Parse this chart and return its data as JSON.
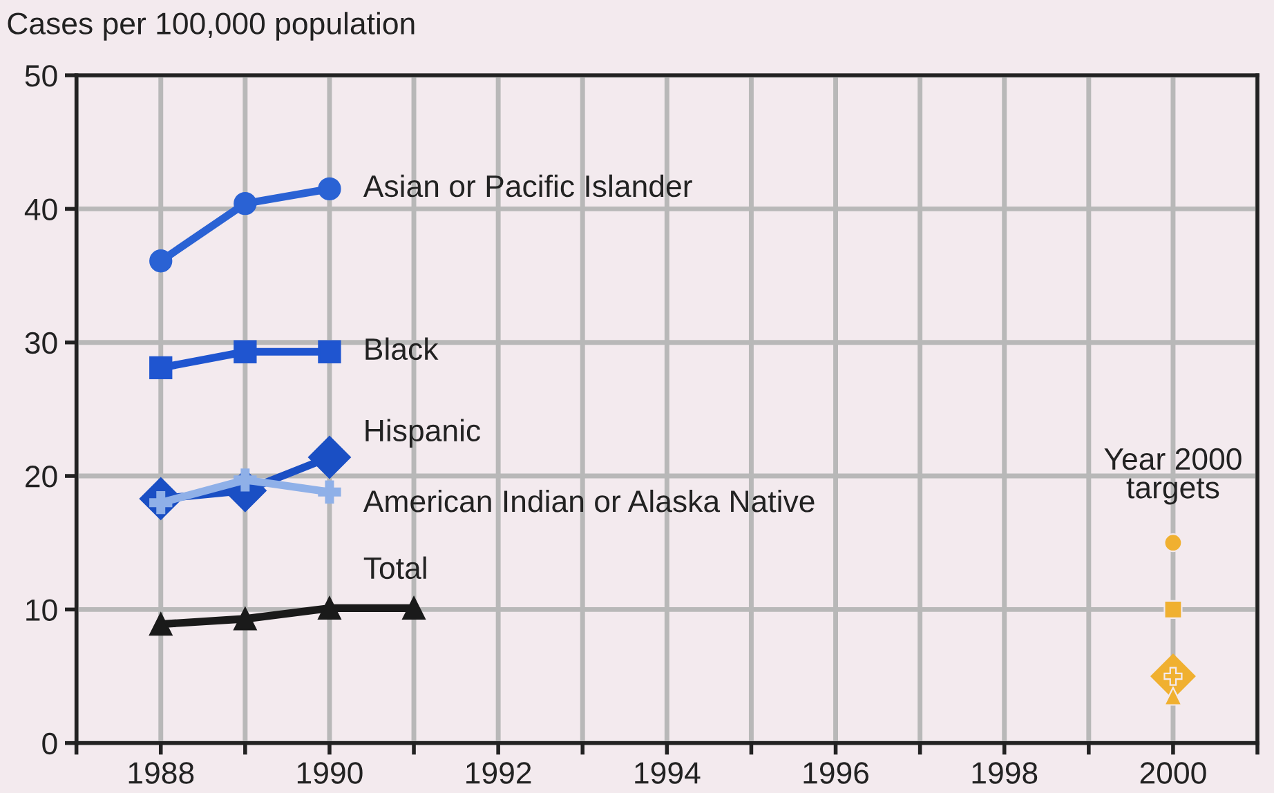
{
  "chart_data": {
    "type": "line",
    "ylabel": "Cases per 100,000 population",
    "xlim": [
      1987,
      2001
    ],
    "ylim": [
      0,
      50
    ],
    "xticks": [
      {
        "value": 1987,
        "label": null
      },
      1988,
      {
        "value": 1989,
        "label": null
      },
      1990,
      {
        "value": 1991,
        "label": null
      },
      1992,
      {
        "value": 1993,
        "label": null
      },
      1994,
      {
        "value": 1995,
        "label": null
      },
      1996,
      {
        "value": 1997,
        "label": null
      },
      1998,
      {
        "value": 1999,
        "label": null
      },
      2000,
      {
        "value": 2001,
        "label": null
      }
    ],
    "yticks": [
      0,
      10,
      20,
      30,
      40,
      50
    ],
    "grid": true,
    "legend": false,
    "line_style": "solid",
    "annotations": [
      "Year 2000 targets"
    ],
    "series": [
      {
        "name": "Asian or Pacific Islander",
        "color": "#2a62d4",
        "marker": "circle",
        "x": [
          1988,
          1989,
          1990
        ],
        "values": [
          36.1,
          40.4,
          41.5
        ]
      },
      {
        "name": "Black",
        "color": "#1f55d0",
        "marker": "square",
        "x": [
          1988,
          1989,
          1990
        ],
        "values": [
          28.1,
          29.3,
          29.3
        ]
      },
      {
        "name": "Hispanic",
        "color": "#1a4fc4",
        "marker": "diamond",
        "x": [
          1988,
          1989,
          1990
        ],
        "values": [
          18.3,
          18.9,
          21.4
        ]
      },
      {
        "name": "American Indian or Alaska Native",
        "color": "#8fb0e8",
        "marker": "cross",
        "x": [
          1988,
          1989,
          1990
        ],
        "values": [
          18.0,
          19.7,
          18.8
        ]
      },
      {
        "name": "Total",
        "color": "#1a1a1a",
        "marker": "triangle",
        "x": [
          1988,
          1989,
          1990,
          1991
        ],
        "values": [
          8.9,
          9.3,
          10.1,
          10.1
        ]
      },
      {
        "type": "scatter",
        "color": "#f0b030",
        "marker": "circle",
        "x": [
          2000
        ],
        "values": [
          15
        ]
      },
      {
        "type": "scatter",
        "color": "#f0b030",
        "marker": "square",
        "x": [
          2000
        ],
        "values": [
          10
        ]
      },
      {
        "type": "scatter",
        "color": "#f0b030",
        "marker": "diamond",
        "x": [
          2000
        ],
        "values": [
          5
        ]
      },
      {
        "type": "scatter",
        "color": "#f0b030",
        "marker": "cross",
        "x": [
          2000
        ],
        "values": [
          5
        ]
      },
      {
        "type": "scatter",
        "color": "#f0b030",
        "marker": "triangle",
        "x": [
          2000
        ],
        "values": [
          3.5
        ]
      }
    ]
  }
}
